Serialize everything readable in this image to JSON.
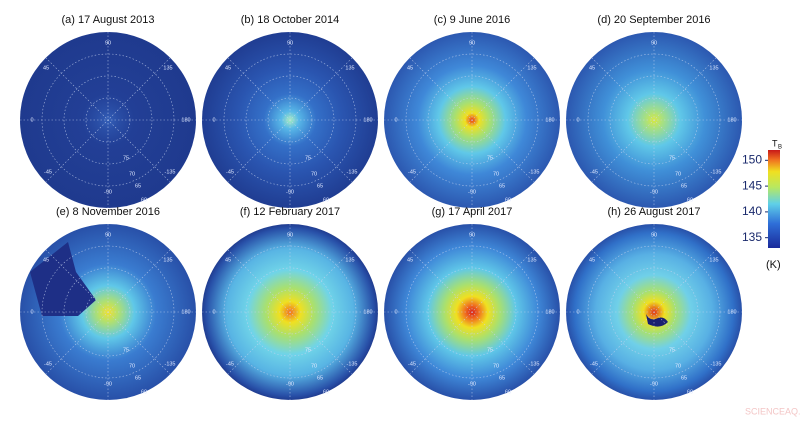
{
  "panels": [
    {
      "title": "(a) 17 August 2013"
    },
    {
      "title": "(b) 18 October 2014"
    },
    {
      "title": "(c) 9 June 2016"
    },
    {
      "title": "(d) 20 September 2016"
    },
    {
      "title": "(e) 8 November 2016"
    },
    {
      "title": "(f) 12 February 2017"
    },
    {
      "title": "(g) 17 April 2017"
    },
    {
      "title": "(h) 26 August 2017"
    }
  ],
  "grid_labels": [
    "90",
    "45",
    "135",
    "0",
    "180",
    "-45",
    "-135",
    "-90",
    "75",
    "70",
    "65",
    "60"
  ],
  "colorbar": {
    "title": "T",
    "title_subscript": "B",
    "unit": "(K)",
    "lim": [
      133,
      152
    ],
    "ticks": [
      135,
      140,
      145,
      150
    ]
  },
  "watermark": "SCIENCEAQ.COM"
}
